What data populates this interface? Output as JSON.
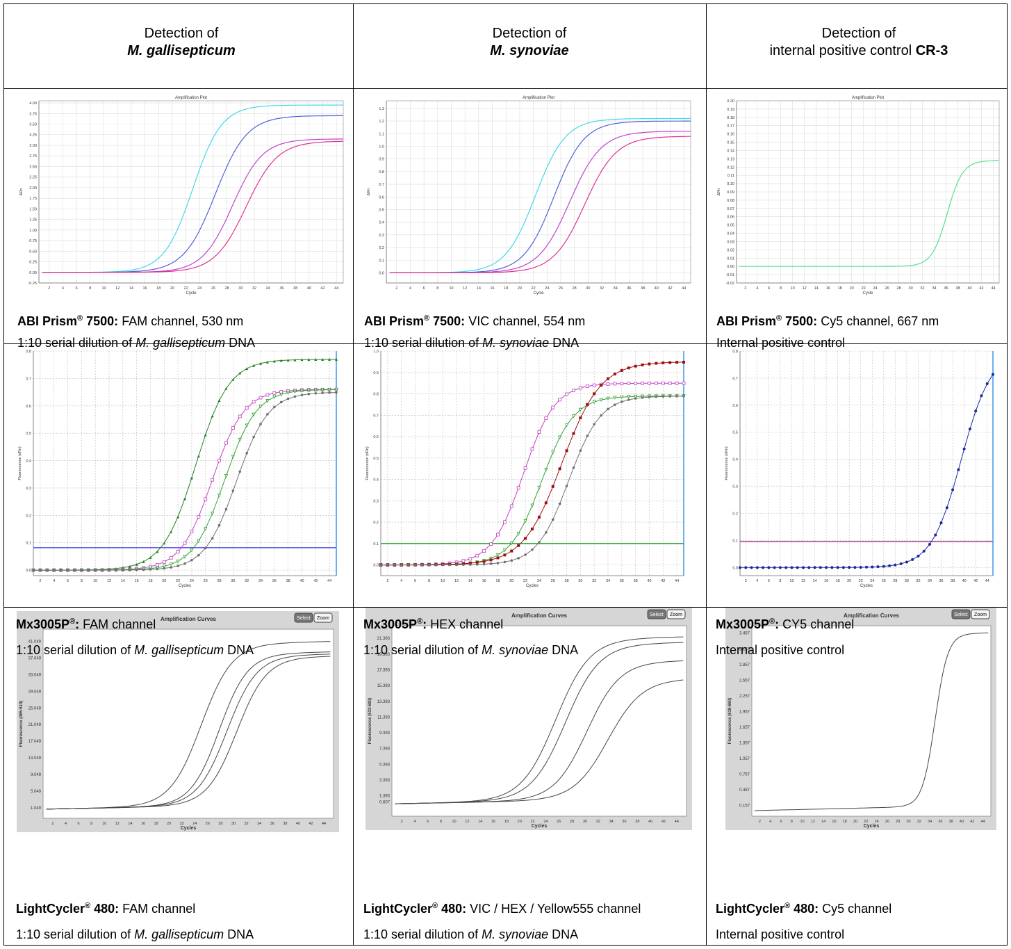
{
  "headers": [
    {
      "prefix": "Detection of",
      "target": "M. gallisepticum",
      "target_style": "italic-bold"
    },
    {
      "prefix": "Detection of",
      "target": "M. synoviae",
      "target_style": "italic-bold"
    },
    {
      "prefix": "Detection of",
      "target_prefix": "internal positive control ",
      "target": "CR-3",
      "target_style": "bold"
    }
  ],
  "captions": {
    "abi_fam": {
      "instrument": "ABI Prism",
      "reg": "®",
      "model": " 7500:",
      "rest": " FAM channel, 530 nm",
      "line2_pre": "1:10 serial dilution of ",
      "line2_it": "M. gallisepticum",
      "line2_post": " DNA"
    },
    "abi_vic": {
      "instrument": "ABI Prism",
      "reg": "®",
      "model": " 7500:",
      "rest": " VIC channel, 554 nm",
      "line2_pre": "1:10 serial dilution of ",
      "line2_it": "M. synoviae",
      "line2_post": " DNA"
    },
    "abi_cy5": {
      "instrument": "ABI Prism",
      "reg": "®",
      "model": " 7500:",
      "rest": " Cy5 channel, 667 nm",
      "line2_pre": "Internal positive control",
      "line2_it": "",
      "line2_post": ""
    },
    "mx_fam": {
      "instrument": "Mx3005P",
      "reg": "®",
      "model": ":",
      "rest": " FAM channel",
      "line2_pre": "1:10 serial dilution of ",
      "line2_it": "M. gallisepticum",
      "line2_post": " DNA"
    },
    "mx_hex": {
      "instrument": "Mx3005P",
      "reg": "®",
      "model": ":",
      "rest": " HEX channel",
      "line2_pre": "1:10 serial dilution of ",
      "line2_it": "M. synoviae",
      "line2_post": " DNA"
    },
    "mx_cy5": {
      "instrument": "Mx3005P",
      "reg": "®",
      "model": ":",
      "rest": " CY5 channel",
      "line2_pre": "Internal positive control",
      "line2_it": "",
      "line2_post": ""
    },
    "lc_fam": {
      "instrument": "LightCycler",
      "reg": "®",
      "model": " 480:",
      "rest": " FAM channel",
      "line2_pre": "1:10 serial dilution of ",
      "line2_it": "M. gallisepticum",
      "line2_post": " DNA"
    },
    "lc_vic": {
      "instrument": "LightCycler",
      "reg": "®",
      "model": " 480:",
      "rest": " VIC / HEX / Yellow555 channel",
      "line2_pre": "1:10 serial dilution of ",
      "line2_it": "M. synoviae",
      "line2_post": " DNA"
    },
    "lc_cy5": {
      "instrument": "LightCycler",
      "reg": "®",
      "model": " 480:",
      "rest": " Cy5 channel",
      "line2_pre": "Internal positive control",
      "line2_it": "",
      "line2_post": ""
    }
  },
  "chart_data": [
    {
      "id": "abi_fam",
      "type": "line",
      "style": "abi",
      "title": "Amplification Plot",
      "xlabel": "Cycle",
      "ylabel": "ΔRn",
      "xlim": [
        0.5,
        45
      ],
      "ylim": [
        -0.25,
        4.05
      ],
      "xticks": [
        2,
        4,
        6,
        8,
        10,
        12,
        14,
        16,
        18,
        20,
        22,
        24,
        26,
        28,
        30,
        32,
        34,
        36,
        38,
        40,
        42,
        44
      ],
      "yticks": [
        -0.25,
        0,
        0.25,
        0.5,
        0.75,
        1,
        1.25,
        1.5,
        1.75,
        2,
        2.25,
        2.5,
        2.75,
        3,
        3.25,
        3.5,
        3.75,
        4
      ],
      "ytick_labels": [
        "-0.25",
        "0.00",
        "0.25",
        "0.50",
        "0.75",
        "1.00",
        "1.25",
        "1.50",
        "1.75",
        "2.00",
        "2.25",
        "2.50",
        "2.75",
        "3.00",
        "3.25",
        "3.50",
        "3.75",
        "4.00"
      ],
      "series": [
        {
          "color": "#40d8e8",
          "sig": {
            "top": 3.95,
            "mid": 23.0,
            "slope": 2.1
          }
        },
        {
          "color": "#5060d8",
          "sig": {
            "top": 3.7,
            "mid": 26.3,
            "slope": 2.3
          }
        },
        {
          "color": "#c040d0",
          "sig": {
            "top": 3.15,
            "mid": 28.8,
            "slope": 2.2
          }
        },
        {
          "color": "#e03090",
          "sig": {
            "top": 3.1,
            "mid": 30.8,
            "slope": 2.3
          }
        }
      ]
    },
    {
      "id": "abi_vic",
      "type": "line",
      "style": "abi",
      "title": "Amplification Plot",
      "xlabel": "Cycle",
      "ylabel": "ΔRn",
      "xlim": [
        0.5,
        45
      ],
      "ylim": [
        -0.08,
        1.36
      ],
      "xticks": [
        2,
        4,
        6,
        8,
        10,
        12,
        14,
        16,
        18,
        20,
        22,
        24,
        26,
        28,
        30,
        32,
        34,
        36,
        38,
        40,
        42,
        44
      ],
      "yticks": [
        0,
        0.1,
        0.2,
        0.3,
        0.4,
        0.5,
        0.6,
        0.7,
        0.8,
        0.9,
        1,
        1.1,
        1.2,
        1.3
      ],
      "ytick_labels": [
        "0.0",
        "0.1",
        "0.2",
        "0.3",
        "0.4",
        "0.5",
        "0.6",
        "0.7",
        "0.8",
        "0.9",
        "1.0",
        "1.1",
        "1.2",
        "1.3"
      ],
      "series": [
        {
          "color": "#40d8e8",
          "sig": {
            "top": 1.22,
            "mid": 22.3,
            "slope": 2.2
          }
        },
        {
          "color": "#5060d8",
          "sig": {
            "top": 1.2,
            "mid": 25.0,
            "slope": 2.2
          }
        },
        {
          "color": "#c040d0",
          "sig": {
            "top": 1.12,
            "mid": 27.3,
            "slope": 2.3
          }
        },
        {
          "color": "#e03090",
          "sig": {
            "top": 1.08,
            "mid": 29.5,
            "slope": 2.3
          }
        }
      ]
    },
    {
      "id": "abi_cy5",
      "type": "line",
      "style": "abi",
      "title": "Amplification Plot",
      "xlabel": "Cycle",
      "ylabel": "ΔRn",
      "xlim": [
        0.5,
        45
      ],
      "ylim": [
        -0.02,
        0.2
      ],
      "xticks": [
        2,
        4,
        6,
        8,
        10,
        12,
        14,
        16,
        18,
        20,
        22,
        24,
        26,
        28,
        30,
        32,
        34,
        36,
        38,
        40,
        42,
        44
      ],
      "yticks": [
        -0.02,
        -0.01,
        0,
        0.01,
        0.02,
        0.03,
        0.04,
        0.05,
        0.06,
        0.07,
        0.08,
        0.09,
        0.1,
        0.11,
        0.12,
        0.13,
        0.14,
        0.15,
        0.16,
        0.17,
        0.18,
        0.19,
        0.2
      ],
      "ytick_labels": [
        "-0.02",
        "-0.01",
        "0.00",
        "0.01",
        "0.02",
        "0.03",
        "0.04",
        "0.05",
        "0.06",
        "0.07",
        "0.08",
        "0.09",
        "0.10",
        "0.11",
        "0.12",
        "0.13",
        "0.14",
        "0.15",
        "0.16",
        "0.17",
        "0.18",
        "0.19",
        "0.20"
      ],
      "series": [
        {
          "color": "#50e090",
          "sig": {
            "top": 0.128,
            "mid": 36.2,
            "slope": 1.3
          }
        }
      ]
    },
    {
      "id": "mx_fam",
      "type": "line",
      "style": "mx",
      "xlabel": "Cycles",
      "ylabel": "Fluorescence (dRn)",
      "xlim": [
        1,
        45
      ],
      "ylim": [
        -0.02,
        0.8
      ],
      "xticks": [
        2,
        4,
        6,
        8,
        10,
        12,
        14,
        16,
        18,
        20,
        22,
        24,
        26,
        28,
        30,
        32,
        34,
        36,
        38,
        40,
        42,
        44
      ],
      "yticks": [
        0,
        0.1,
        0.2,
        0.3,
        0.4,
        0.5,
        0.6,
        0.7,
        0.8
      ],
      "ytick_labels": [
        "0.0",
        "0.1",
        "0.2",
        "0.3",
        "0.4",
        "0.5",
        "0.6",
        "0.7",
        "0.8"
      ],
      "threshold": {
        "value": 0.082,
        "color": "#5050e0"
      },
      "marker_line_color": "#3090e0",
      "series": [
        {
          "color": "#208020",
          "marker": "triangle",
          "sig": {
            "top": 0.77,
            "mid": 24.6,
            "slope": 2.4
          }
        },
        {
          "color": "#c040c0",
          "marker": "square",
          "sig": {
            "top": 0.66,
            "mid": 27.0,
            "slope": 2.3
          }
        },
        {
          "color": "#30a030",
          "marker": "triangle-down",
          "sig": {
            "top": 0.66,
            "mid": 28.8,
            "slope": 2.3
          }
        },
        {
          "color": "#707070",
          "marker": "circle",
          "sig": {
            "top": 0.65,
            "mid": 30.5,
            "slope": 2.3
          }
        }
      ]
    },
    {
      "id": "mx_hex",
      "type": "line",
      "style": "mx",
      "xlabel": "Cycles",
      "ylabel": "Fluorescence (dRn)",
      "xlim": [
        1,
        45
      ],
      "ylim": [
        -0.05,
        1.0
      ],
      "xticks": [
        2,
        4,
        6,
        8,
        10,
        12,
        14,
        16,
        18,
        20,
        22,
        24,
        26,
        28,
        30,
        32,
        34,
        36,
        38,
        40,
        42,
        44
      ],
      "yticks": [
        0,
        0.1,
        0.2,
        0.3,
        0.4,
        0.5,
        0.6,
        0.7,
        0.8,
        0.9,
        1.0
      ],
      "ytick_labels": [
        "0.0",
        "0.1",
        "0.2",
        "0.3",
        "0.4",
        "0.5",
        "0.6",
        "0.7",
        "0.8",
        "0.9",
        "1.0"
      ],
      "threshold": {
        "value": 0.1,
        "color": "#20a020"
      },
      "marker_line_color": "#3090e0",
      "series": [
        {
          "color": "#c040c0",
          "marker": "square",
          "sig": {
            "top": 0.85,
            "mid": 21.7,
            "slope": 2.3
          }
        },
        {
          "color": "#30a030",
          "marker": "triangle-down",
          "sig": {
            "top": 0.79,
            "mid": 24.4,
            "slope": 2.3
          }
        },
        {
          "color": "#a01010",
          "marker": "filled-square",
          "sig": {
            "top": 0.95,
            "mid": 27.3,
            "slope": 2.8
          }
        },
        {
          "color": "#707070",
          "marker": "circle",
          "sig": {
            "top": 0.79,
            "mid": 28.3,
            "slope": 2.3
          }
        }
      ]
    },
    {
      "id": "mx_cy5",
      "type": "line",
      "style": "mx",
      "xlabel": "Cycles",
      "ylabel": "Fluorescence (dRn)",
      "xlim": [
        1,
        45
      ],
      "ylim": [
        -0.03,
        0.8
      ],
      "xticks": [
        2,
        4,
        6,
        8,
        10,
        12,
        14,
        16,
        18,
        20,
        22,
        24,
        26,
        28,
        30,
        32,
        34,
        36,
        38,
        40,
        42,
        44
      ],
      "yticks": [
        0,
        0.1,
        0.2,
        0.3,
        0.4,
        0.5,
        0.6,
        0.7,
        0.8
      ],
      "ytick_labels": [
        "0.0",
        "0.1",
        "0.2",
        "0.3",
        "0.4",
        "0.5",
        "0.6",
        "0.7",
        "0.8"
      ],
      "threshold": {
        "value": 0.096,
        "color": "#a03090"
      },
      "marker_line_color": "#3090e0",
      "series": [
        {
          "color": "#1828a0",
          "marker": "filled-circle",
          "sig": {
            "top": 0.8,
            "mid": 39.5,
            "slope": 2.6
          }
        }
      ]
    },
    {
      "id": "lc_fam",
      "type": "line",
      "style": "lc",
      "title": "Amplification Curves",
      "xlabel": "Cycles",
      "ylabel": "Fluorescence (465-510)",
      "buttons": [
        "Select",
        "Zoom"
      ],
      "xlim": [
        0.5,
        45.5
      ],
      "ylim": [
        -1.5,
        44
      ],
      "xticks": [
        2,
        4,
        6,
        8,
        10,
        12,
        14,
        16,
        18,
        20,
        22,
        24,
        26,
        28,
        30,
        32,
        34,
        36,
        38,
        40,
        42,
        44
      ],
      "yticks": [
        1.049,
        5.049,
        9.049,
        13.049,
        17.049,
        21.049,
        25.049,
        29.049,
        33.049,
        37.049,
        41.049
      ],
      "ytick_labels": [
        "1.049",
        "5.049",
        "9.049",
        "13.049",
        "17.049",
        "21.049",
        "25.049",
        "29.049",
        "33.049",
        "37.049",
        "41.049"
      ],
      "series": [
        {
          "color": "#444",
          "sig": {
            "top": 39.0,
            "mid": 25.0,
            "slope": 2.4
          }
        },
        {
          "color": "#444",
          "sig": {
            "top": 36.5,
            "mid": 27.8,
            "slope": 2.2
          }
        },
        {
          "color": "#444",
          "sig": {
            "top": 36.0,
            "mid": 29.0,
            "slope": 2.3
          }
        },
        {
          "color": "#444",
          "sig": {
            "top": 35.5,
            "mid": 30.5,
            "slope": 2.3
          }
        }
      ]
    },
    {
      "id": "lc_vic",
      "type": "line",
      "style": "lc",
      "title": "Amplification Curves",
      "xlabel": "Cycles",
      "ylabel": "Fluorescence (533-580)",
      "buttons": [
        "Select",
        "Zoom"
      ],
      "xlim": [
        0.5,
        45.5
      ],
      "ylim": [
        -1.2,
        23
      ],
      "xticks": [
        2,
        4,
        6,
        8,
        10,
        12,
        14,
        16,
        18,
        20,
        22,
        24,
        26,
        28,
        30,
        32,
        34,
        36,
        38,
        40,
        42,
        44
      ],
      "yticks": [
        0.607,
        1.393,
        3.393,
        5.393,
        7.393,
        9.393,
        11.393,
        13.393,
        15.393,
        17.393,
        19.393,
        21.393
      ],
      "ytick_labels": [
        "0.607",
        "1.393",
        "3.393",
        "5.393",
        "7.393",
        "9.393",
        "11.393",
        "13.393",
        "15.393",
        "17.393",
        "19.393",
        "21.393"
      ],
      "series": [
        {
          "color": "#444",
          "sig": {
            "top": 20.5,
            "mid": 25.5,
            "slope": 2.6
          }
        },
        {
          "color": "#444",
          "sig": {
            "top": 19.8,
            "mid": 27.0,
            "slope": 2.6
          }
        },
        {
          "color": "#444",
          "sig": {
            "top": 17.5,
            "mid": 30.3,
            "slope": 2.5
          }
        },
        {
          "color": "#444",
          "sig": {
            "top": 15.2,
            "mid": 33.5,
            "slope": 2.6
          }
        }
      ]
    },
    {
      "id": "lc_cy5",
      "type": "line",
      "style": "lc",
      "title": "Amplification Curves",
      "xlabel": "Cycles",
      "ylabel": "Fluorescence (618-660)",
      "buttons": [
        "Select",
        "Zoom"
      ],
      "xlim": [
        0.5,
        45.5
      ],
      "ylim": [
        -0.05,
        3.6
      ],
      "xticks": [
        2,
        4,
        6,
        8,
        10,
        12,
        14,
        16,
        18,
        20,
        22,
        24,
        26,
        28,
        30,
        32,
        34,
        36,
        38,
        40,
        42,
        44
      ],
      "yticks": [
        0.157,
        0.457,
        0.757,
        1.057,
        1.357,
        1.657,
        1.957,
        2.257,
        2.557,
        2.857,
        3.157,
        3.457
      ],
      "ytick_labels": [
        "0.157",
        "0.457",
        "0.757",
        "1.057",
        "1.357",
        "1.657",
        "1.957",
        "2.257",
        "2.557",
        "2.857",
        "3.157",
        "3.457"
      ],
      "series": [
        {
          "color": "#444",
          "sig": {
            "top": 3.3,
            "mid": 35.0,
            "slope": 1.2
          }
        }
      ]
    }
  ]
}
